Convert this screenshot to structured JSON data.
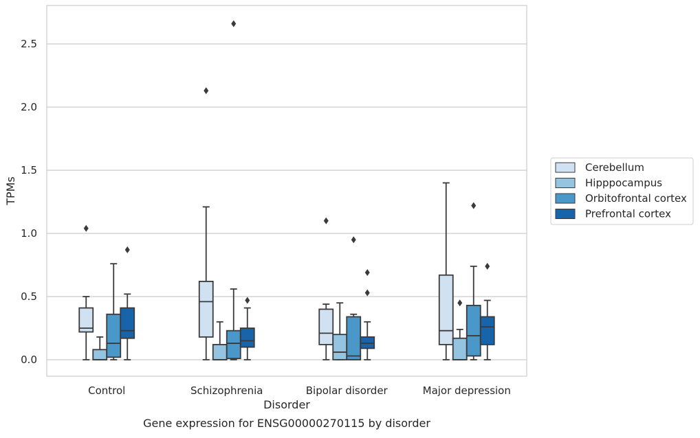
{
  "caption": "Gene expression for ENSG00000270115 by disorder",
  "chart_data": {
    "type": "box",
    "xlabel": "Disorder",
    "ylabel": "TPMs",
    "ylim": [
      -0.13,
      2.8
    ],
    "yticks": [
      0.0,
      0.5,
      1.0,
      1.5,
      2.0,
      2.5
    ],
    "ytick_labels": [
      "0.0",
      "0.5",
      "1.0",
      "1.5",
      "2.0",
      "2.5"
    ],
    "grid": "horizontal",
    "legend_position": "right",
    "categories": [
      "Control",
      "Schizophrenia",
      "Bipolar disorder",
      "Major depression"
    ],
    "series": [
      {
        "name": "Cerebellum",
        "color": "#d0e1f2",
        "boxes": [
          {
            "whislo": 0.0,
            "q1": 0.22,
            "med": 0.25,
            "q3": 0.41,
            "whishi": 0.5,
            "fliers": [
              1.04
            ]
          },
          {
            "whislo": 0.0,
            "q1": 0.18,
            "med": 0.46,
            "q3": 0.62,
            "whishi": 1.21,
            "fliers": [
              2.13
            ]
          },
          {
            "whislo": 0.0,
            "q1": 0.12,
            "med": 0.21,
            "q3": 0.4,
            "whishi": 0.44,
            "fliers": [
              1.1
            ]
          },
          {
            "whislo": 0.0,
            "q1": 0.12,
            "med": 0.23,
            "q3": 0.67,
            "whishi": 1.4,
            "fliers": []
          }
        ]
      },
      {
        "name": "Hipppocampus",
        "color": "#94c4df",
        "boxes": [
          {
            "whislo": 0.0,
            "q1": 0.0,
            "med": 0.0,
            "q3": 0.08,
            "whishi": 0.18,
            "fliers": []
          },
          {
            "whislo": 0.0,
            "q1": 0.0,
            "med": 0.0,
            "q3": 0.12,
            "whishi": 0.3,
            "fliers": []
          },
          {
            "whislo": 0.0,
            "q1": 0.0,
            "med": 0.06,
            "q3": 0.2,
            "whishi": 0.45,
            "fliers": []
          },
          {
            "whislo": 0.0,
            "q1": 0.0,
            "med": 0.0,
            "q3": 0.17,
            "whishi": 0.24,
            "fliers": [
              0.45
            ]
          }
        ]
      },
      {
        "name": "Orbitofrontal cortex",
        "color": "#4a98c9",
        "boxes": [
          {
            "whislo": 0.0,
            "q1": 0.02,
            "med": 0.13,
            "q3": 0.36,
            "whishi": 0.76,
            "fliers": []
          },
          {
            "whislo": 0.0,
            "q1": 0.01,
            "med": 0.13,
            "q3": 0.23,
            "whishi": 0.56,
            "fliers": [
              2.66
            ]
          },
          {
            "whislo": 0.0,
            "q1": 0.0,
            "med": 0.03,
            "q3": 0.34,
            "whishi": 0.36,
            "fliers": [
              0.95
            ]
          },
          {
            "whislo": 0.0,
            "q1": 0.03,
            "med": 0.19,
            "q3": 0.43,
            "whishi": 0.74,
            "fliers": [
              1.22
            ]
          }
        ]
      },
      {
        "name": "Prefrontal cortex",
        "color": "#1764ab",
        "boxes": [
          {
            "whislo": 0.0,
            "q1": 0.17,
            "med": 0.23,
            "q3": 0.41,
            "whishi": 0.52,
            "fliers": [
              0.87
            ]
          },
          {
            "whislo": 0.0,
            "q1": 0.1,
            "med": 0.15,
            "q3": 0.25,
            "whishi": 0.41,
            "fliers": [
              0.47
            ]
          },
          {
            "whislo": 0.0,
            "q1": 0.09,
            "med": 0.13,
            "q3": 0.18,
            "whishi": 0.3,
            "fliers": [
              0.53,
              0.69
            ]
          },
          {
            "whislo": 0.0,
            "q1": 0.12,
            "med": 0.26,
            "q3": 0.34,
            "whishi": 0.47,
            "fliers": [
              0.74
            ]
          }
        ]
      }
    ]
  }
}
